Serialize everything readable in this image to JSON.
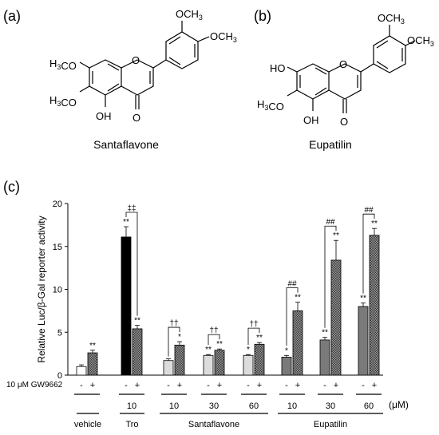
{
  "panel_labels": {
    "a": "(a)",
    "b": "(b)",
    "c": "(c)"
  },
  "molecule_a": {
    "name": "Santaflavone",
    "substituents": {
      "ome_3p": "OCH3",
      "ome_4p": "OCH3",
      "ome_7": "H3CO",
      "ome_6": "H3CO",
      "oh_5": "OH",
      "carbonyl": "O",
      "ring_o": "O"
    }
  },
  "molecule_b": {
    "name": "Eupatilin",
    "substituents": {
      "ome_3p": "OCH3",
      "ome_4p": "OCH3",
      "oh_7": "HO",
      "ome_6": "H3CO",
      "oh_5": "OH",
      "carbonyl": "O",
      "ring_o": "O"
    }
  },
  "chart_data": {
    "type": "bar",
    "ylabel": "Relative Luc/β-Gal reporter activity",
    "ylim": [
      0,
      20
    ],
    "yticks": [
      0,
      5,
      10,
      15,
      20
    ],
    "treatment_label": "10 μM GW9662",
    "unit_label": "(μM)",
    "groups": [
      {
        "dose": "",
        "compound": "vehicle",
        "color": "#ffffff",
        "bars": [
          {
            "gw": "-",
            "value": 1.0,
            "err": 0.2,
            "sig": "",
            "fill": "solid"
          },
          {
            "gw": "+",
            "value": 2.6,
            "err": 0.3,
            "sig": "**",
            "fill": "check"
          }
        ],
        "bracket": ""
      },
      {
        "dose": "10",
        "compound": "Tro",
        "color": "#000000",
        "bars": [
          {
            "gw": "-",
            "value": 16.1,
            "err": 1.2,
            "sig": "**",
            "fill": "solid"
          },
          {
            "gw": "+",
            "value": 5.4,
            "err": 0.4,
            "sig": "**",
            "fill": "check"
          }
        ],
        "bracket": "‡‡"
      },
      {
        "dose": "10",
        "compound": "Santaflavone",
        "color": "#dcdcdc",
        "bars": [
          {
            "gw": "-",
            "value": 1.7,
            "err": 0.2,
            "sig": "",
            "fill": "solid"
          },
          {
            "gw": "+",
            "value": 3.5,
            "err": 0.4,
            "sig": "*",
            "fill": "check"
          }
        ],
        "bracket": "††"
      },
      {
        "dose": "30",
        "compound": "Santaflavone",
        "color": "#dcdcdc",
        "bars": [
          {
            "gw": "-",
            "value": 2.3,
            "err": 0.1,
            "sig": "**",
            "fill": "solid"
          },
          {
            "gw": "+",
            "value": 2.9,
            "err": 0.15,
            "sig": "**",
            "fill": "check"
          }
        ],
        "bracket": "††"
      },
      {
        "dose": "60",
        "compound": "Santaflavone",
        "color": "#dcdcdc",
        "bars": [
          {
            "gw": "-",
            "value": 2.3,
            "err": 0.1,
            "sig": "*",
            "fill": "solid"
          },
          {
            "gw": "+",
            "value": 3.6,
            "err": 0.2,
            "sig": "**",
            "fill": "check"
          }
        ],
        "bracket": "††"
      },
      {
        "dose": "10",
        "compound": "Eupatilin",
        "color": "#7a7a7a",
        "bars": [
          {
            "gw": "-",
            "value": 2.1,
            "err": 0.2,
            "sig": "*",
            "fill": "solid"
          },
          {
            "gw": "+",
            "value": 7.5,
            "err": 1.0,
            "sig": "**",
            "fill": "check"
          }
        ],
        "bracket": "##"
      },
      {
        "dose": "30",
        "compound": "Eupatilin",
        "color": "#7a7a7a",
        "bars": [
          {
            "gw": "-",
            "value": 4.1,
            "err": 0.3,
            "sig": "**",
            "fill": "solid"
          },
          {
            "gw": "+",
            "value": 13.4,
            "err": 2.3,
            "sig": "**",
            "fill": "check"
          }
        ],
        "bracket": "##"
      },
      {
        "dose": "60",
        "compound": "Eupatilin",
        "color": "#7a7a7a",
        "bars": [
          {
            "gw": "-",
            "value": 8.0,
            "err": 0.4,
            "sig": "**",
            "fill": "solid"
          },
          {
            "gw": "+",
            "value": 16.3,
            "err": 0.8,
            "sig": "**",
            "fill": "check"
          }
        ],
        "bracket": "##"
      }
    ],
    "compound_labels": [
      "vehicle",
      "Tro",
      "Santaflavone",
      "Eupatilin"
    ]
  }
}
